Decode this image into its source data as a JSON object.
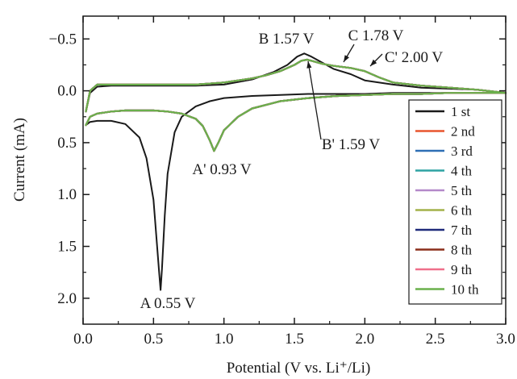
{
  "chart_data": {
    "type": "line",
    "title": "",
    "xlabel": "Potential (V vs. Li⁺/Li)",
    "ylabel": "Current (mA)",
    "xlim": [
      0.0,
      3.0
    ],
    "ylim": [
      -0.72,
      2.25
    ],
    "y_axis_inverted": true,
    "x_ticks": [
      "0.0",
      "0.5",
      "1.0",
      "1.5",
      "2.0",
      "2.5",
      "3.0"
    ],
    "y_ticks": [
      "−0.5",
      "0.0",
      "0.5",
      "1.0",
      "1.5",
      "2.0"
    ],
    "x_tick_values": [
      0.0,
      0.5,
      1.0,
      1.5,
      2.0,
      2.5,
      3.0
    ],
    "y_tick_values": [
      -0.5,
      0.0,
      0.5,
      1.0,
      1.5,
      2.0
    ],
    "grid": false,
    "legend_position": "right",
    "annotations": [
      {
        "text": "A 0.55 V",
        "x": 0.55,
        "y": 1.92
      },
      {
        "text": "A' 0.93 V",
        "x": 0.93,
        "y": 0.58
      },
      {
        "text": "B 1.57 V",
        "x": 1.57,
        "y": -0.36
      },
      {
        "text": "B' 1.59 V",
        "x": 1.59,
        "y": -0.29
      },
      {
        "text": "C 1.78 V",
        "x": 1.78,
        "y": -0.24
      },
      {
        "text": "C' 2.00 V",
        "x": 2.0,
        "y": -0.22
      }
    ],
    "series": [
      {
        "name": "1 st",
        "color": "#1a1a1a",
        "x": [
          0.02,
          0.05,
          0.1,
          0.2,
          0.3,
          0.4,
          0.45,
          0.5,
          0.52,
          0.54,
          0.55,
          0.56,
          0.58,
          0.6,
          0.65,
          0.7,
          0.8,
          0.9,
          1.0,
          1.2,
          1.4,
          1.6,
          1.8,
          2.0,
          2.2,
          2.4,
          2.6,
          2.8,
          3.0,
          2.8,
          2.6,
          2.4,
          2.2,
          2.0,
          1.9,
          1.78,
          1.7,
          1.62,
          1.57,
          1.52,
          1.45,
          1.35,
          1.2,
          1.0,
          0.8,
          0.6,
          0.4,
          0.2,
          0.1,
          0.05,
          0.02
        ],
        "y": [
          0.33,
          0.3,
          0.29,
          0.29,
          0.32,
          0.45,
          0.65,
          1.05,
          1.4,
          1.75,
          1.92,
          1.72,
          1.2,
          0.8,
          0.4,
          0.25,
          0.15,
          0.1,
          0.07,
          0.05,
          0.04,
          0.03,
          0.03,
          0.03,
          0.02,
          0.02,
          0.02,
          0.02,
          0.02,
          -0.01,
          -0.02,
          -0.03,
          -0.06,
          -0.1,
          -0.16,
          -0.21,
          -0.27,
          -0.33,
          -0.36,
          -0.33,
          -0.25,
          -0.18,
          -0.11,
          -0.06,
          -0.05,
          -0.05,
          -0.05,
          -0.05,
          -0.04,
          0.02,
          0.2
        ]
      },
      {
        "name": "2 nd",
        "color": "#e8552e",
        "x": [
          0.02,
          0.05,
          0.1,
          0.2,
          0.3,
          0.4,
          0.5,
          0.6,
          0.7,
          0.8,
          0.85,
          0.9,
          0.93,
          0.96,
          1.0,
          1.1,
          1.2,
          1.4,
          1.6,
          1.8,
          2.0,
          2.2,
          2.4,
          2.6,
          2.8,
          3.0,
          2.8,
          2.6,
          2.4,
          2.2,
          2.1,
          2.0,
          1.9,
          1.78,
          1.7,
          1.62,
          1.59,
          1.55,
          1.5,
          1.4,
          1.3,
          1.2,
          1.0,
          0.8,
          0.6,
          0.4,
          0.2,
          0.1,
          0.05,
          0.02
        ],
        "y": [
          0.33,
          0.25,
          0.22,
          0.2,
          0.19,
          0.19,
          0.19,
          0.2,
          0.22,
          0.27,
          0.34,
          0.48,
          0.58,
          0.5,
          0.38,
          0.25,
          0.17,
          0.1,
          0.07,
          0.05,
          0.04,
          0.03,
          0.03,
          0.02,
          0.02,
          0.02,
          -0.01,
          -0.03,
          -0.05,
          -0.08,
          -0.13,
          -0.19,
          -0.22,
          -0.24,
          -0.26,
          -0.29,
          -0.3,
          -0.29,
          -0.25,
          -0.19,
          -0.15,
          -0.12,
          -0.08,
          -0.06,
          -0.06,
          -0.06,
          -0.06,
          -0.06,
          0.0,
          0.2
        ]
      },
      {
        "name": "3 rd",
        "color": "#2e6fb5",
        "x": [
          0.02,
          0.05,
          0.1,
          0.2,
          0.3,
          0.4,
          0.5,
          0.6,
          0.7,
          0.8,
          0.85,
          0.9,
          0.93,
          0.96,
          1.0,
          1.1,
          1.2,
          1.4,
          1.6,
          1.8,
          2.0,
          2.2,
          2.4,
          2.6,
          2.8,
          3.0,
          2.8,
          2.6,
          2.4,
          2.2,
          2.1,
          2.0,
          1.9,
          1.78,
          1.7,
          1.62,
          1.59,
          1.55,
          1.5,
          1.4,
          1.3,
          1.2,
          1.0,
          0.8,
          0.6,
          0.4,
          0.2,
          0.1,
          0.05,
          0.02
        ],
        "y": [
          0.33,
          0.25,
          0.22,
          0.2,
          0.19,
          0.19,
          0.19,
          0.2,
          0.22,
          0.27,
          0.34,
          0.48,
          0.58,
          0.5,
          0.38,
          0.25,
          0.17,
          0.1,
          0.07,
          0.05,
          0.04,
          0.03,
          0.03,
          0.02,
          0.02,
          0.02,
          -0.01,
          -0.03,
          -0.05,
          -0.08,
          -0.13,
          -0.19,
          -0.22,
          -0.24,
          -0.26,
          -0.29,
          -0.3,
          -0.29,
          -0.25,
          -0.19,
          -0.15,
          -0.12,
          -0.08,
          -0.06,
          -0.06,
          -0.06,
          -0.06,
          -0.06,
          0.0,
          0.2
        ]
      },
      {
        "name": "4 th",
        "color": "#2fa3a3",
        "x": [
          0.02,
          0.05,
          0.1,
          0.2,
          0.3,
          0.4,
          0.5,
          0.6,
          0.7,
          0.8,
          0.85,
          0.9,
          0.93,
          0.96,
          1.0,
          1.1,
          1.2,
          1.4,
          1.6,
          1.8,
          2.0,
          2.2,
          2.4,
          2.6,
          2.8,
          3.0,
          2.8,
          2.6,
          2.4,
          2.2,
          2.1,
          2.0,
          1.9,
          1.78,
          1.7,
          1.62,
          1.59,
          1.55,
          1.5,
          1.4,
          1.3,
          1.2,
          1.0,
          0.8,
          0.6,
          0.4,
          0.2,
          0.1,
          0.05,
          0.02
        ],
        "y": [
          0.33,
          0.25,
          0.22,
          0.2,
          0.19,
          0.19,
          0.19,
          0.2,
          0.22,
          0.27,
          0.34,
          0.48,
          0.58,
          0.5,
          0.38,
          0.25,
          0.17,
          0.1,
          0.07,
          0.05,
          0.04,
          0.03,
          0.03,
          0.02,
          0.02,
          0.02,
          -0.01,
          -0.03,
          -0.05,
          -0.08,
          -0.13,
          -0.19,
          -0.22,
          -0.24,
          -0.26,
          -0.29,
          -0.3,
          -0.29,
          -0.25,
          -0.19,
          -0.15,
          -0.12,
          -0.08,
          -0.06,
          -0.06,
          -0.06,
          -0.06,
          -0.06,
          0.0,
          0.2
        ]
      },
      {
        "name": "5 th",
        "color": "#b489c9",
        "x": [
          0.02,
          0.05,
          0.1,
          0.2,
          0.3,
          0.4,
          0.5,
          0.6,
          0.7,
          0.8,
          0.85,
          0.9,
          0.93,
          0.96,
          1.0,
          1.1,
          1.2,
          1.4,
          1.6,
          1.8,
          2.0,
          2.2,
          2.4,
          2.6,
          2.8,
          3.0,
          2.8,
          2.6,
          2.4,
          2.2,
          2.1,
          2.0,
          1.9,
          1.78,
          1.7,
          1.62,
          1.59,
          1.55,
          1.5,
          1.4,
          1.3,
          1.2,
          1.0,
          0.8,
          0.6,
          0.4,
          0.2,
          0.1,
          0.05,
          0.02
        ],
        "y": [
          0.33,
          0.25,
          0.22,
          0.2,
          0.19,
          0.19,
          0.19,
          0.2,
          0.22,
          0.27,
          0.34,
          0.48,
          0.58,
          0.5,
          0.38,
          0.25,
          0.17,
          0.1,
          0.07,
          0.05,
          0.04,
          0.03,
          0.03,
          0.02,
          0.02,
          0.02,
          -0.01,
          -0.03,
          -0.05,
          -0.08,
          -0.13,
          -0.19,
          -0.22,
          -0.24,
          -0.26,
          -0.29,
          -0.3,
          -0.29,
          -0.25,
          -0.19,
          -0.15,
          -0.12,
          -0.08,
          -0.06,
          -0.06,
          -0.06,
          -0.06,
          -0.06,
          0.0,
          0.2
        ]
      },
      {
        "name": "6 th",
        "color": "#a3b24a",
        "x": [
          0.02,
          0.05,
          0.1,
          0.2,
          0.3,
          0.4,
          0.5,
          0.6,
          0.7,
          0.8,
          0.85,
          0.9,
          0.93,
          0.96,
          1.0,
          1.1,
          1.2,
          1.4,
          1.6,
          1.8,
          2.0,
          2.2,
          2.4,
          2.6,
          2.8,
          3.0,
          2.8,
          2.6,
          2.4,
          2.2,
          2.1,
          2.0,
          1.9,
          1.78,
          1.7,
          1.62,
          1.59,
          1.55,
          1.5,
          1.4,
          1.3,
          1.2,
          1.0,
          0.8,
          0.6,
          0.4,
          0.2,
          0.1,
          0.05,
          0.02
        ],
        "y": [
          0.33,
          0.25,
          0.22,
          0.2,
          0.19,
          0.19,
          0.19,
          0.2,
          0.22,
          0.27,
          0.34,
          0.48,
          0.58,
          0.5,
          0.38,
          0.25,
          0.17,
          0.1,
          0.07,
          0.05,
          0.04,
          0.03,
          0.03,
          0.02,
          0.02,
          0.02,
          -0.01,
          -0.03,
          -0.05,
          -0.08,
          -0.13,
          -0.19,
          -0.22,
          -0.24,
          -0.26,
          -0.29,
          -0.3,
          -0.29,
          -0.25,
          -0.19,
          -0.15,
          -0.12,
          -0.08,
          -0.06,
          -0.06,
          -0.06,
          -0.06,
          -0.06,
          0.0,
          0.2
        ]
      },
      {
        "name": "7 th",
        "color": "#1f2a7a",
        "x": [
          0.02,
          0.05,
          0.1,
          0.2,
          0.3,
          0.4,
          0.5,
          0.6,
          0.7,
          0.8,
          0.85,
          0.9,
          0.93,
          0.96,
          1.0,
          1.1,
          1.2,
          1.4,
          1.6,
          1.8,
          2.0,
          2.2,
          2.4,
          2.6,
          2.8,
          3.0,
          2.8,
          2.6,
          2.4,
          2.2,
          2.1,
          2.0,
          1.9,
          1.78,
          1.7,
          1.62,
          1.59,
          1.55,
          1.5,
          1.4,
          1.3,
          1.2,
          1.0,
          0.8,
          0.6,
          0.4,
          0.2,
          0.1,
          0.05,
          0.02
        ],
        "y": [
          0.33,
          0.25,
          0.22,
          0.2,
          0.19,
          0.19,
          0.19,
          0.2,
          0.22,
          0.27,
          0.34,
          0.48,
          0.58,
          0.5,
          0.38,
          0.25,
          0.17,
          0.1,
          0.07,
          0.05,
          0.04,
          0.03,
          0.03,
          0.02,
          0.02,
          0.02,
          -0.01,
          -0.03,
          -0.05,
          -0.08,
          -0.13,
          -0.19,
          -0.22,
          -0.24,
          -0.26,
          -0.29,
          -0.3,
          -0.29,
          -0.25,
          -0.19,
          -0.15,
          -0.12,
          -0.08,
          -0.06,
          -0.06,
          -0.06,
          -0.06,
          -0.06,
          0.0,
          0.2
        ]
      },
      {
        "name": "8 th",
        "color": "#8b2e1a",
        "x": [
          0.02,
          0.05,
          0.1,
          0.2,
          0.3,
          0.4,
          0.5,
          0.6,
          0.7,
          0.8,
          0.85,
          0.9,
          0.93,
          0.96,
          1.0,
          1.1,
          1.2,
          1.4,
          1.6,
          1.8,
          2.0,
          2.2,
          2.4,
          2.6,
          2.8,
          3.0,
          2.8,
          2.6,
          2.4,
          2.2,
          2.1,
          2.0,
          1.9,
          1.78,
          1.7,
          1.62,
          1.59,
          1.55,
          1.5,
          1.4,
          1.3,
          1.2,
          1.0,
          0.8,
          0.6,
          0.4,
          0.2,
          0.1,
          0.05,
          0.02
        ],
        "y": [
          0.33,
          0.25,
          0.22,
          0.2,
          0.19,
          0.19,
          0.19,
          0.2,
          0.22,
          0.27,
          0.34,
          0.48,
          0.58,
          0.5,
          0.38,
          0.25,
          0.17,
          0.1,
          0.07,
          0.05,
          0.04,
          0.03,
          0.03,
          0.02,
          0.02,
          0.02,
          -0.01,
          -0.03,
          -0.05,
          -0.08,
          -0.13,
          -0.19,
          -0.22,
          -0.24,
          -0.26,
          -0.29,
          -0.3,
          -0.29,
          -0.25,
          -0.19,
          -0.15,
          -0.12,
          -0.08,
          -0.06,
          -0.06,
          -0.06,
          -0.06,
          -0.06,
          0.0,
          0.2
        ]
      },
      {
        "name": "9 th",
        "color": "#ef6f8a",
        "x": [
          0.02,
          0.05,
          0.1,
          0.2,
          0.3,
          0.4,
          0.5,
          0.6,
          0.7,
          0.8,
          0.85,
          0.9,
          0.93,
          0.96,
          1.0,
          1.1,
          1.2,
          1.4,
          1.6,
          1.8,
          2.0,
          2.2,
          2.4,
          2.6,
          2.8,
          3.0,
          2.8,
          2.6,
          2.4,
          2.2,
          2.1,
          2.0,
          1.9,
          1.78,
          1.7,
          1.62,
          1.59,
          1.55,
          1.5,
          1.4,
          1.3,
          1.2,
          1.0,
          0.8,
          0.6,
          0.4,
          0.2,
          0.1,
          0.05,
          0.02
        ],
        "y": [
          0.33,
          0.25,
          0.22,
          0.2,
          0.19,
          0.19,
          0.19,
          0.2,
          0.22,
          0.27,
          0.34,
          0.48,
          0.58,
          0.5,
          0.38,
          0.25,
          0.17,
          0.1,
          0.07,
          0.05,
          0.04,
          0.03,
          0.03,
          0.02,
          0.02,
          0.02,
          -0.01,
          -0.03,
          -0.05,
          -0.08,
          -0.13,
          -0.19,
          -0.22,
          -0.24,
          -0.26,
          -0.29,
          -0.3,
          -0.29,
          -0.25,
          -0.19,
          -0.15,
          -0.12,
          -0.08,
          -0.06,
          -0.06,
          -0.06,
          -0.06,
          -0.06,
          0.0,
          0.2
        ]
      },
      {
        "name": "10 th",
        "color": "#6ab04c",
        "x": [
          0.02,
          0.05,
          0.1,
          0.2,
          0.3,
          0.4,
          0.5,
          0.6,
          0.7,
          0.8,
          0.85,
          0.9,
          0.93,
          0.96,
          1.0,
          1.1,
          1.2,
          1.4,
          1.6,
          1.8,
          2.0,
          2.2,
          2.4,
          2.6,
          2.8,
          3.0,
          2.8,
          2.6,
          2.4,
          2.2,
          2.1,
          2.0,
          1.9,
          1.78,
          1.7,
          1.62,
          1.59,
          1.55,
          1.5,
          1.4,
          1.3,
          1.2,
          1.0,
          0.8,
          0.6,
          0.4,
          0.2,
          0.1,
          0.05,
          0.02
        ],
        "y": [
          0.33,
          0.25,
          0.22,
          0.2,
          0.19,
          0.19,
          0.19,
          0.2,
          0.22,
          0.27,
          0.34,
          0.48,
          0.58,
          0.5,
          0.38,
          0.25,
          0.17,
          0.1,
          0.07,
          0.05,
          0.04,
          0.03,
          0.03,
          0.02,
          0.02,
          0.02,
          -0.01,
          -0.03,
          -0.05,
          -0.08,
          -0.13,
          -0.19,
          -0.22,
          -0.24,
          -0.26,
          -0.29,
          -0.3,
          -0.29,
          -0.25,
          -0.19,
          -0.15,
          -0.12,
          -0.08,
          -0.06,
          -0.06,
          -0.06,
          -0.06,
          -0.06,
          0.0,
          0.2
        ]
      }
    ]
  }
}
